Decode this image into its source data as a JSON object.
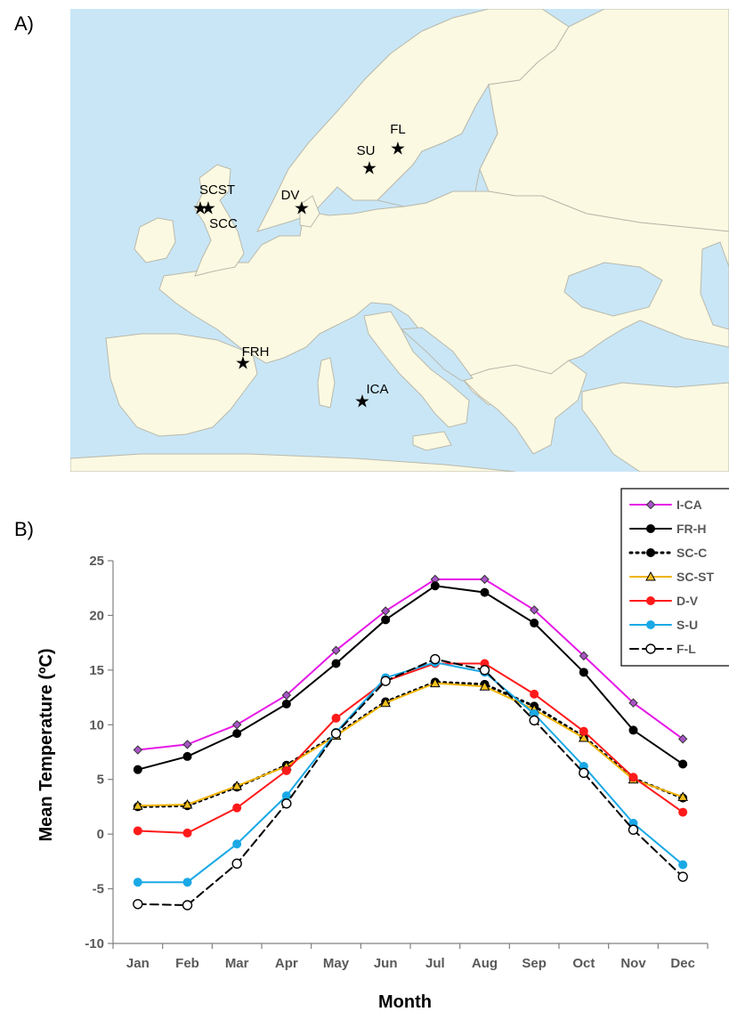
{
  "panels": {
    "a_label": "A)",
    "b_label": "B)"
  },
  "map": {
    "sites": [
      {
        "label": "FL"
      },
      {
        "label": "SU"
      },
      {
        "label": "DV"
      },
      {
        "label": "SCST"
      },
      {
        "label": "SCC"
      },
      {
        "label": "FRH"
      },
      {
        "label": "ICA"
      }
    ],
    "colors": {
      "sea": "#c9e6f6",
      "land": "#fbf9e1",
      "border": "#b9b9ac"
    }
  },
  "chart_data": {
    "type": "line",
    "title": "",
    "xlabel": "Month",
    "ylabel": "Mean Temperature (ºC)",
    "ylim": [
      -10,
      25
    ],
    "yticks": [
      -10,
      -5,
      0,
      5,
      10,
      15,
      20,
      25
    ],
    "categories": [
      "Jan",
      "Feb",
      "Mar",
      "Apr",
      "May",
      "Jun",
      "Jul",
      "Aug",
      "Sep",
      "Oct",
      "Nov",
      "Dec"
    ],
    "legend_position": "top-right",
    "grid": false,
    "series": [
      {
        "name": "I-CA",
        "color": "#e619e6",
        "marker": "diamond",
        "dash": "solid",
        "values": [
          7.7,
          8.2,
          10.0,
          12.7,
          16.8,
          20.4,
          23.3,
          23.3,
          20.5,
          16.3,
          12.0,
          8.7
        ]
      },
      {
        "name": "FR-H",
        "color": "#000000",
        "marker": "circle",
        "dash": "solid",
        "values": [
          5.9,
          7.1,
          9.2,
          11.9,
          15.6,
          19.6,
          22.7,
          22.1,
          19.3,
          14.8,
          9.5,
          6.4
        ]
      },
      {
        "name": "SC-C",
        "color": "#000000",
        "marker": "circle",
        "dash": "dotted",
        "values": [
          2.5,
          2.6,
          4.3,
          6.3,
          9.1,
          12.1,
          13.9,
          13.7,
          11.7,
          8.9,
          5.1,
          3.3
        ]
      },
      {
        "name": "SC-ST",
        "color": "#f0b400",
        "marker": "triangle",
        "dash": "solid",
        "values": [
          2.6,
          2.7,
          4.4,
          6.2,
          9.0,
          12.0,
          13.8,
          13.5,
          11.4,
          8.8,
          5.0,
          3.4
        ]
      },
      {
        "name": "D-V",
        "color": "#ff1a1a",
        "marker": "circle",
        "dash": "solid",
        "values": [
          0.3,
          0.1,
          2.4,
          5.8,
          10.6,
          14.0,
          15.6,
          15.6,
          12.8,
          9.4,
          5.2,
          2.0
        ]
      },
      {
        "name": "S-U",
        "color": "#1aa9e6",
        "marker": "circle",
        "dash": "solid",
        "values": [
          -4.4,
          -4.4,
          -0.9,
          3.5,
          9.3,
          14.3,
          15.7,
          14.8,
          11.0,
          6.2,
          1.0,
          -2.8
        ]
      },
      {
        "name": "F-L",
        "color": "#000000",
        "marker": "open-circle",
        "dash": "dashed",
        "values": [
          -6.4,
          -6.5,
          -2.7,
          2.8,
          9.2,
          14.0,
          16.0,
          15.0,
          10.4,
          5.6,
          0.4,
          -3.9
        ]
      }
    ]
  }
}
